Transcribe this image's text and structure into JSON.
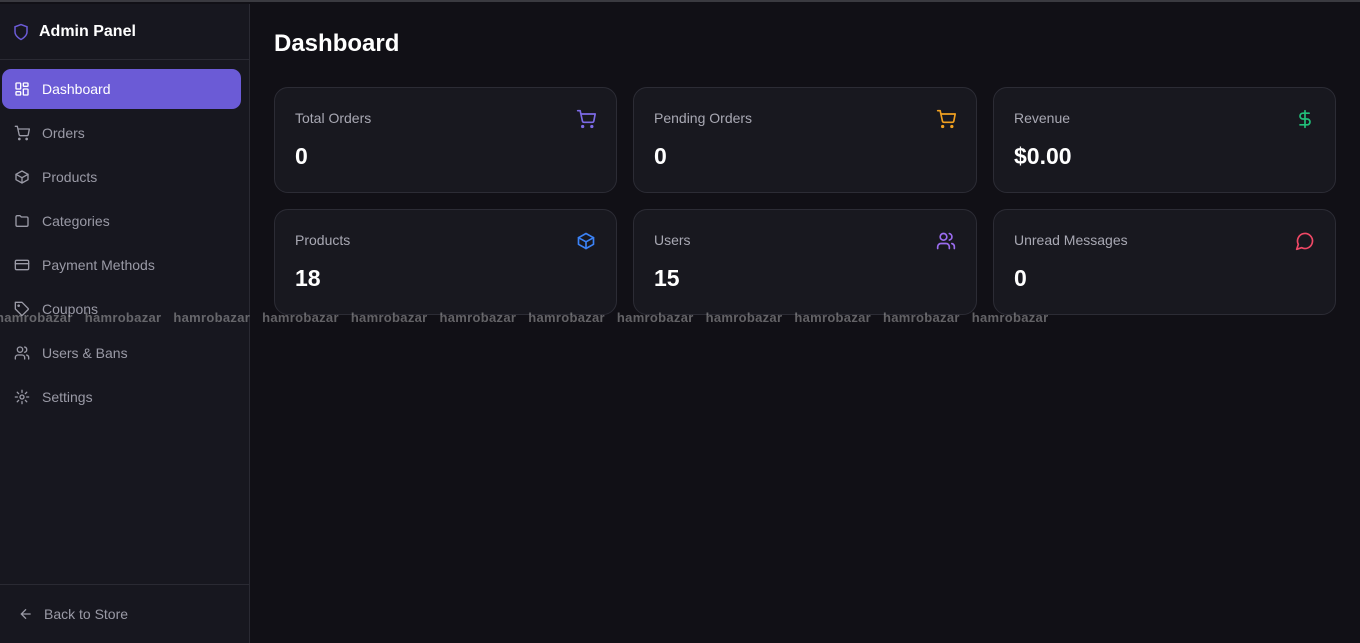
{
  "sidebar": {
    "title": "Admin Panel",
    "items": [
      {
        "label": "Dashboard",
        "icon": "dashboard-icon",
        "active": true
      },
      {
        "label": "Orders",
        "icon": "cart-icon"
      },
      {
        "label": "Products",
        "icon": "package-icon"
      },
      {
        "label": "Categories",
        "icon": "folder-icon"
      },
      {
        "label": "Payment Methods",
        "icon": "credit-card-icon"
      },
      {
        "label": "Coupons",
        "icon": "tag-icon"
      },
      {
        "label": "Users & Bans",
        "icon": "users-icon"
      },
      {
        "label": "Settings",
        "icon": "gear-icon"
      }
    ],
    "back": "Back to Store"
  },
  "main": {
    "title": "Dashboard",
    "cards": [
      {
        "label": "Total Orders",
        "value": "0",
        "icon": "cart-icon",
        "color": "#7c6ae6"
      },
      {
        "label": "Pending Orders",
        "value": "0",
        "icon": "cart-icon",
        "color": "#f0a020"
      },
      {
        "label": "Revenue",
        "value": "$0.00",
        "icon": "dollar-icon",
        "color": "#22c07a"
      },
      {
        "label": "Products",
        "value": "18",
        "icon": "package-icon",
        "color": "#3b82f6"
      },
      {
        "label": "Users",
        "value": "15",
        "icon": "users-icon",
        "color": "#9b6cf0"
      },
      {
        "label": "Unread Messages",
        "value": "0",
        "icon": "message-icon",
        "color": "#f04866"
      }
    ]
  },
  "watermark": "hamrobazar",
  "colors": {
    "accent": "#6b5bd6",
    "background": "#111016",
    "sidebar": "#17171f"
  }
}
